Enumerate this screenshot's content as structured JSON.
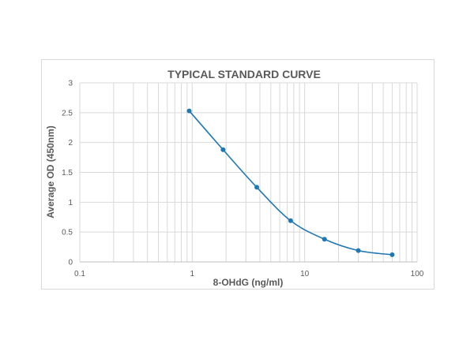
{
  "chart_data": {
    "type": "line",
    "title": "TYPICAL STANDARD CURVE",
    "xlabel": "8-OHdG (ng/ml)",
    "ylabel": "Average OD (450nm)",
    "x_scale": "log",
    "xlim": [
      0.1,
      100
    ],
    "ylim": [
      0,
      3
    ],
    "x_ticks": [
      "0.1",
      "1",
      "10",
      "100"
    ],
    "y_ticks": [
      "0",
      "0.5",
      "1",
      "1.5",
      "2",
      "2.5",
      "3"
    ],
    "grid": true,
    "legend": "none",
    "series": [
      {
        "color": "#1f77b4",
        "x": [
          0.94,
          1.88,
          3.75,
          7.5,
          15,
          30,
          60
        ],
        "y": [
          2.53,
          1.88,
          1.25,
          0.69,
          0.38,
          0.19,
          0.12
        ]
      }
    ]
  }
}
